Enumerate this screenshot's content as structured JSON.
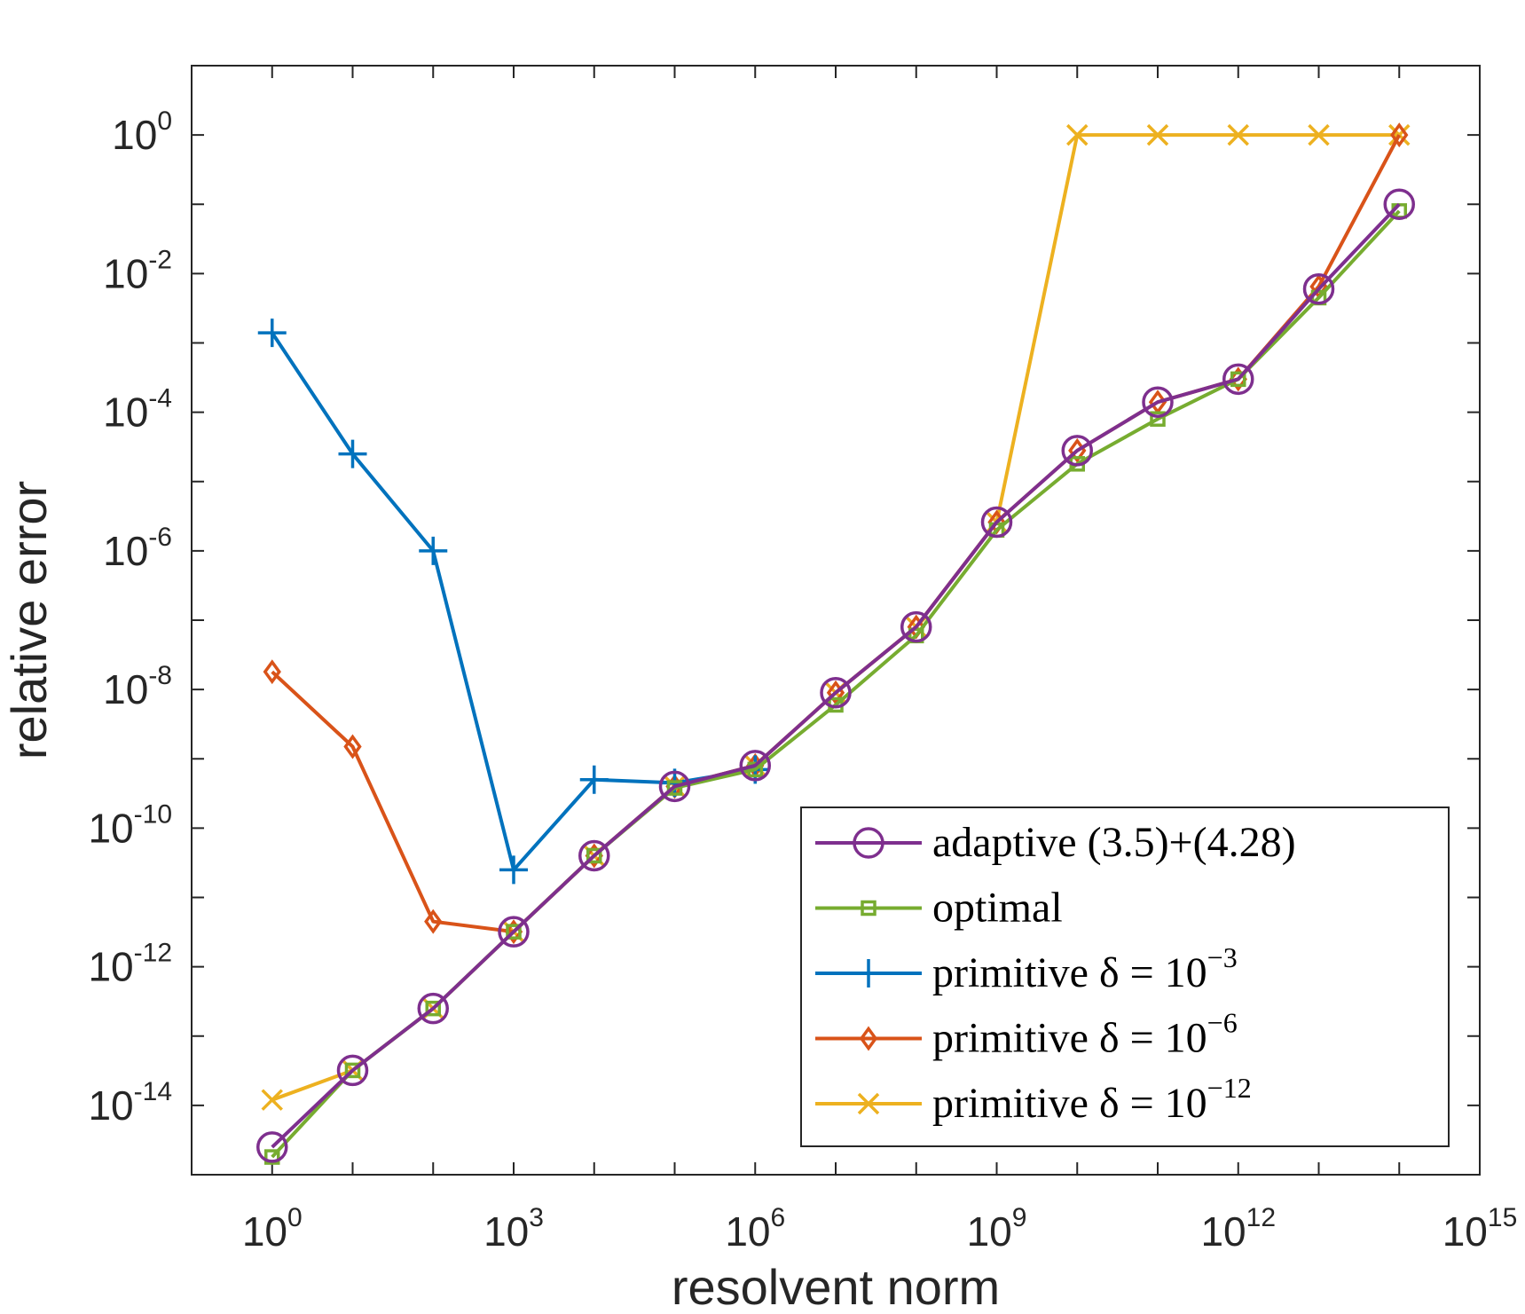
{
  "chart_data": {
    "type": "line",
    "title": "",
    "xlabel": "resolvent norm",
    "ylabel": "relative error",
    "xscale": "log",
    "yscale": "log",
    "xlim_exp": [
      -1,
      15
    ],
    "ylim_exp": [
      -15,
      1
    ],
    "xticks": [
      {
        "base": "10",
        "exp": "0",
        "value": 1
      },
      {
        "base": "10",
        "exp": "3",
        "value": 1000.0
      },
      {
        "base": "10",
        "exp": "6",
        "value": 1000000.0
      },
      {
        "base": "10",
        "exp": "9",
        "value": 1000000000.0
      },
      {
        "base": "10",
        "exp": "12",
        "value": 1000000000000.0
      },
      {
        "base": "10",
        "exp": "15",
        "value": 1000000000000000.0
      }
    ],
    "yticks": [
      {
        "base": "10",
        "exp": "0",
        "value": 1
      },
      {
        "base": "10",
        "exp": "-2",
        "value": 0.01
      },
      {
        "base": "10",
        "exp": "-4",
        "value": 0.0001
      },
      {
        "base": "10",
        "exp": "-6",
        "value": 1e-06
      },
      {
        "base": "10",
        "exp": "-8",
        "value": 1e-08
      },
      {
        "base": "10",
        "exp": "-10",
        "value": 1e-10
      },
      {
        "base": "10",
        "exp": "-12",
        "value": 1e-12
      },
      {
        "base": "10",
        "exp": "-14",
        "value": 1e-14
      }
    ],
    "legend_position": "bottom-right",
    "series": [
      {
        "name": "adaptive (3.5)+(4.28)",
        "label_plain": "adaptive (3.5)+(4.28)",
        "color": "#7E2F8E",
        "marker": "circle",
        "x": [
          1,
          10,
          100,
          1000,
          10000,
          100000,
          1000000,
          10000000,
          100000000,
          1000000000,
          10000000000,
          100000000000,
          1000000000000,
          10000000000000,
          100000000000000
        ],
        "y": [
          2.5e-15,
          3.2e-14,
          2.5e-13,
          3.2e-12,
          4e-11,
          4e-10,
          8e-10,
          9e-09,
          8e-08,
          2.6e-06,
          2.8e-05,
          0.00014,
          0.0003,
          0.006,
          0.1
        ]
      },
      {
        "name": "optimal",
        "label_plain": "optimal",
        "color": "#77AC30",
        "marker": "square",
        "x": [
          1,
          10,
          100,
          1000,
          10000,
          100000,
          1000000,
          10000000,
          100000000,
          1000000000,
          10000000000,
          100000000000,
          1000000000000,
          10000000000000,
          100000000000000
        ],
        "y": [
          1.8e-15,
          3.2e-14,
          2.5e-13,
          3.2e-12,
          4e-11,
          3.8e-10,
          7e-10,
          6e-09,
          6e-08,
          2e-06,
          1.8e-05,
          8e-05,
          0.0003,
          0.0045,
          0.08
        ]
      },
      {
        "name": "primitive δ = 10^-3",
        "label_plain": "primitive δ = 10",
        "label_exp": "−3",
        "color": "#0072BD",
        "marker": "plus",
        "x": [
          1,
          10,
          100,
          1000,
          10000,
          100000,
          1000000
        ],
        "y": [
          0.0014,
          2.5e-05,
          1e-06,
          2.5e-11,
          5e-10,
          4.5e-10,
          7e-10
        ]
      },
      {
        "name": "primitive δ = 10^-6",
        "label_plain": "primitive δ = 10",
        "label_exp": "−6",
        "color": "#D95319",
        "marker": "diamond",
        "x": [
          1,
          10,
          100,
          1000,
          10000,
          100000,
          1000000,
          10000000,
          100000000,
          1000000000,
          10000000000,
          100000000000,
          1000000000000,
          10000000000000,
          100000000000000
        ],
        "y": [
          1.8e-08,
          1.5e-09,
          4.5e-12,
          3.2e-12,
          4e-11,
          4e-10,
          8e-10,
          9e-09,
          8e-08,
          2.6e-06,
          2.8e-05,
          0.00014,
          0.0003,
          0.0065,
          1.0
        ]
      },
      {
        "name": "primitive δ = 10^-12",
        "label_plain": "primitive δ = 10",
        "label_exp": "−12",
        "color": "#EDB120",
        "marker": "x",
        "x": [
          1,
          10,
          100,
          1000,
          10000,
          100000,
          1000000,
          10000000,
          100000000,
          1000000000,
          10000000000,
          100000000000,
          1000000000000,
          10000000000000,
          100000000000000
        ],
        "y": [
          1.2e-14,
          3.2e-14,
          2.5e-13,
          3.2e-12,
          4e-11,
          4e-10,
          8e-10,
          9e-09,
          8e-08,
          2.6e-06,
          1.0,
          1.0,
          1.0,
          1.0,
          1.0
        ]
      }
    ]
  }
}
